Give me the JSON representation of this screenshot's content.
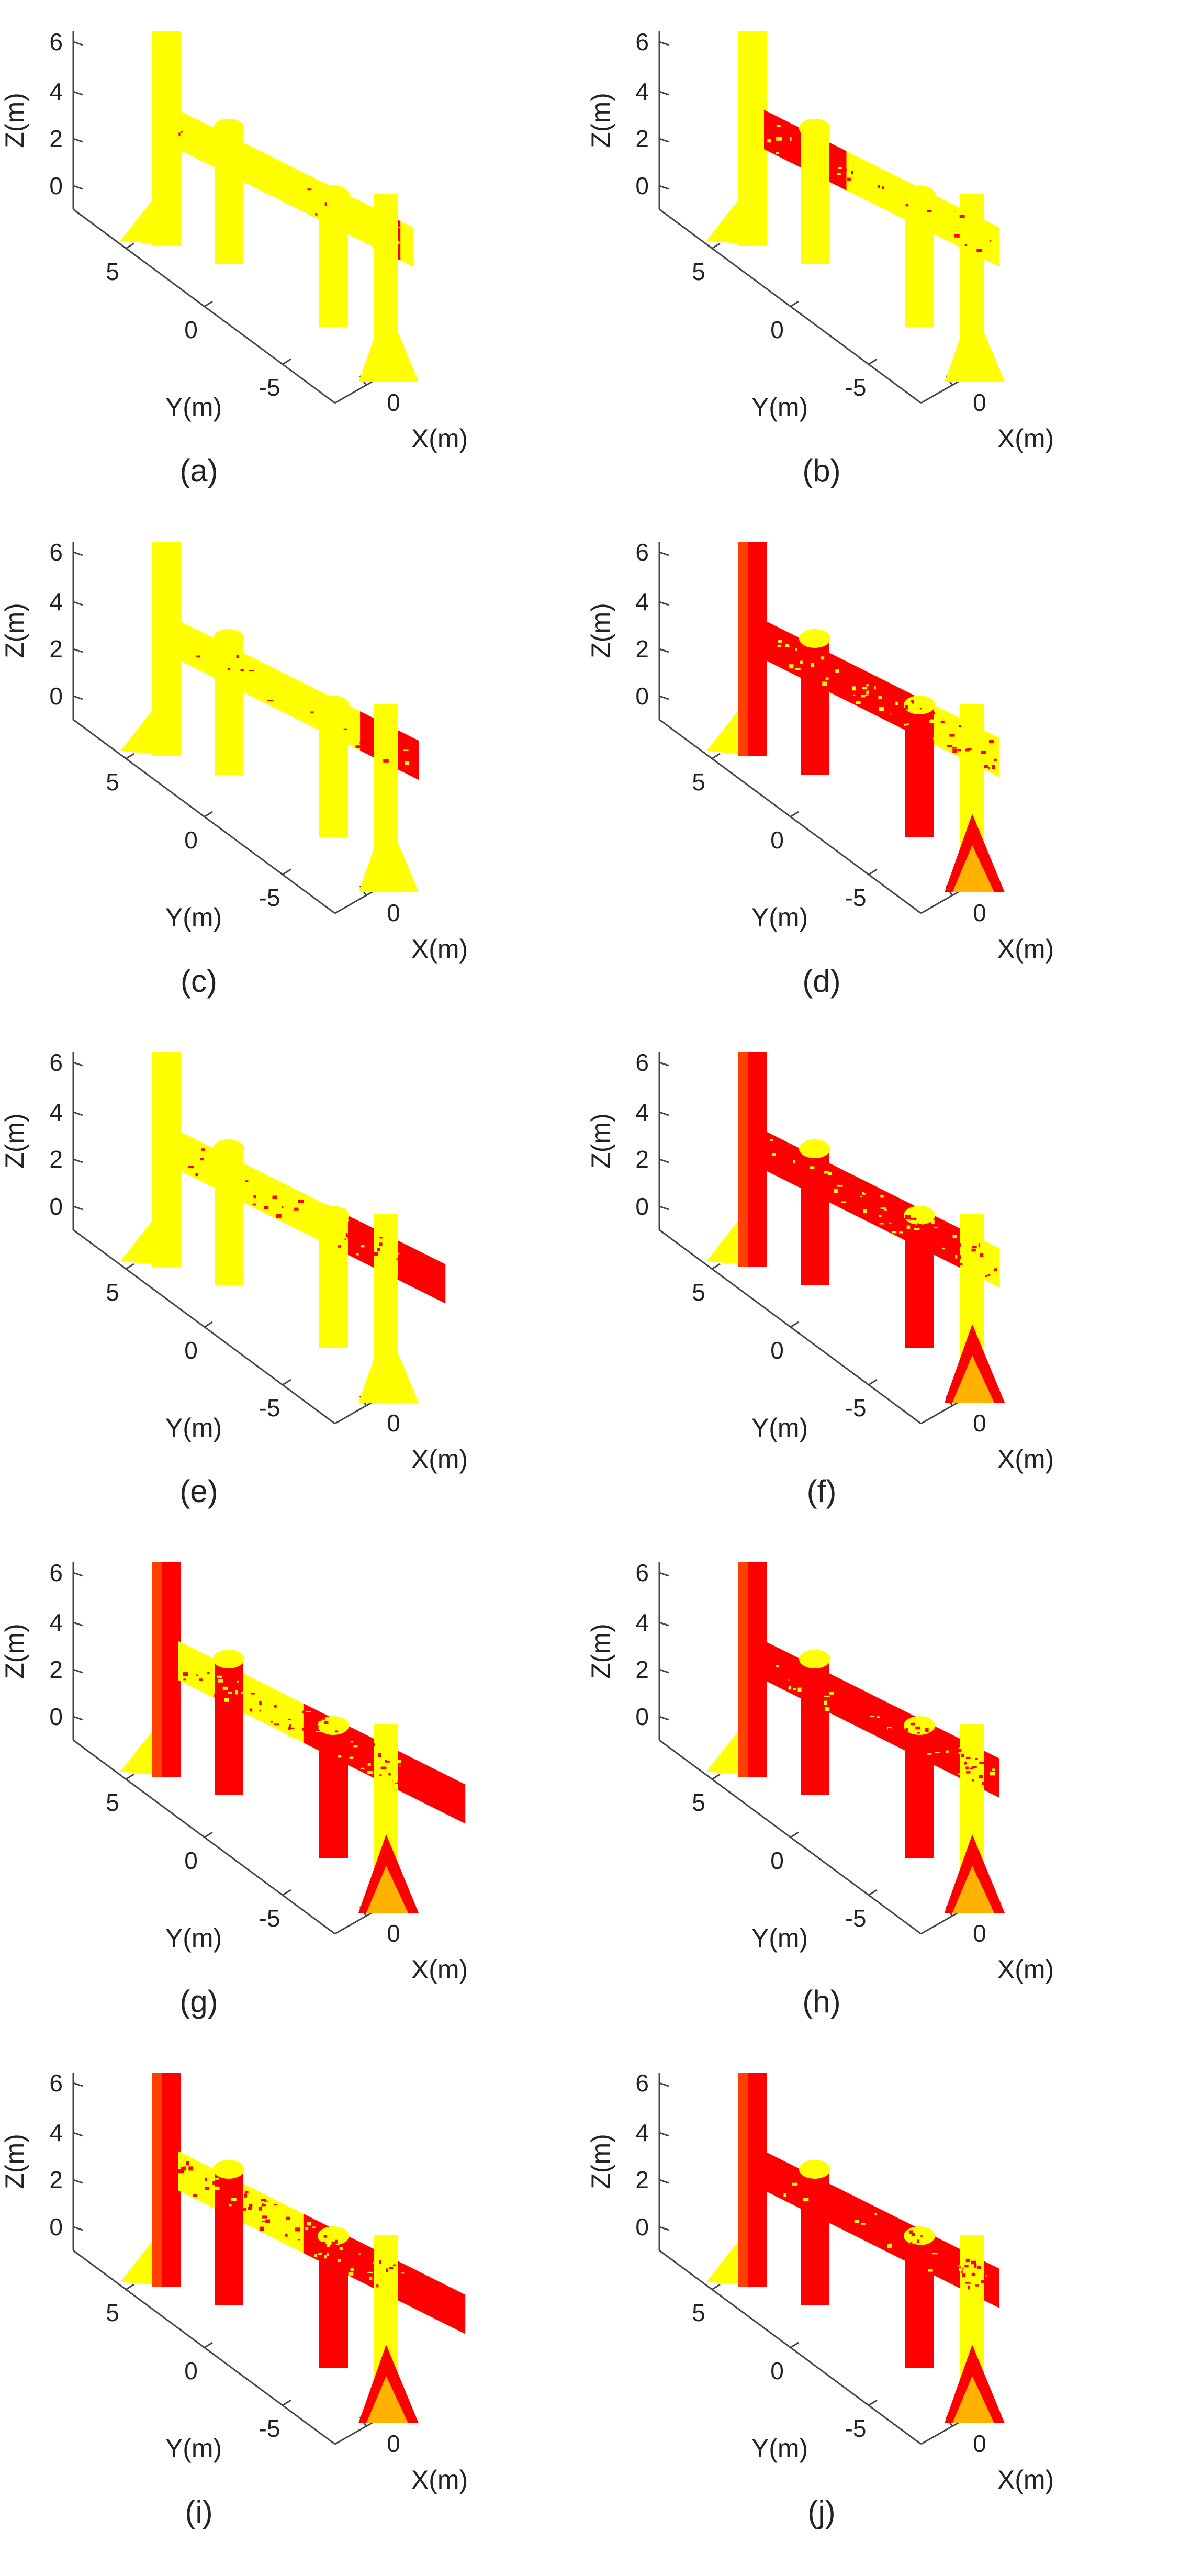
{
  "colors": {
    "structure_yellow": "#ffff00",
    "structure_red": "#ff0000",
    "axes": "#444444",
    "background": "#ffffff"
  },
  "axes": {
    "z_label": "Z(m)",
    "y_label": "Y(m)",
    "x_label": "X(m)",
    "z_ticks": [
      "6",
      "4",
      "2",
      "0"
    ],
    "y_ticks": [
      "5",
      "0",
      "-5"
    ],
    "x_ticks": [
      "0"
    ]
  },
  "panels": [
    {
      "label": "(a)",
      "red_fraction": 0.06
    },
    {
      "label": "(b)",
      "red_fraction": 0.28
    },
    {
      "label": "(c)",
      "red_fraction": 0.2
    },
    {
      "label": "(d)",
      "red_fraction": 0.55
    },
    {
      "label": "(e)",
      "red_fraction": 0.4
    },
    {
      "label": "(f)",
      "red_fraction": 0.7
    },
    {
      "label": "(g)",
      "red_fraction": 0.55
    },
    {
      "label": "(h)",
      "red_fraction": 0.82
    },
    {
      "label": "(i)",
      "red_fraction": 0.55
    },
    {
      "label": "(j)",
      "red_fraction": 0.85
    }
  ]
}
